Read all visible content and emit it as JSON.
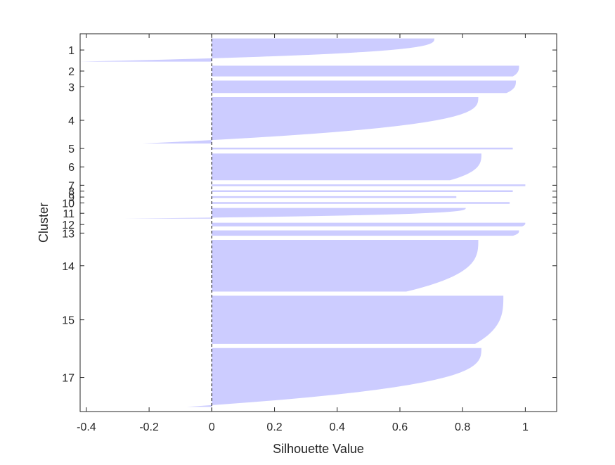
{
  "chart_data": {
    "type": "bar",
    "orientation": "horizontal",
    "xlabel": "Silhouette Value",
    "ylabel": "Cluster",
    "xlim": [
      -0.42,
      1.1
    ],
    "x_ticks": [
      "-0.4",
      "-0.2",
      "0",
      "0.2",
      "0.4",
      "0.6",
      "0.8",
      "1"
    ],
    "x_tick_values": [
      -0.4,
      -0.2,
      0,
      0.2,
      0.4,
      0.6,
      0.8,
      1
    ],
    "bar_color": "#ccccff",
    "zero_line_color": "#000000",
    "grid": false,
    "clusters": [
      {
        "label": "1",
        "count": 13,
        "max": 0.71,
        "min": -0.42
      },
      {
        "label": "2",
        "count": 6,
        "max": 0.98,
        "min": 0.96
      },
      {
        "label": "3",
        "count": 7,
        "max": 0.97,
        "min": 0.94
      },
      {
        "label": "4",
        "count": 26,
        "max": 0.85,
        "min": -0.22
      },
      {
        "label": "5",
        "count": 1,
        "max": 0.96,
        "min": 0.96
      },
      {
        "label": "6",
        "count": 15,
        "max": 0.86,
        "min": 0.76
      },
      {
        "label": "7",
        "count": 1,
        "max": 1.0,
        "min": 1.0
      },
      {
        "label": "8",
        "count": 1,
        "max": 0.96,
        "min": 0.96
      },
      {
        "label": "9",
        "count": 1,
        "max": 0.78,
        "min": 0.78
      },
      {
        "label": "10",
        "count": 1,
        "max": 0.95,
        "min": 0.95
      },
      {
        "label": "11",
        "count": 6,
        "max": 0.81,
        "min": -0.28
      },
      {
        "label": "12",
        "count": 2,
        "max": 1.0,
        "min": 0.99
      },
      {
        "label": "13",
        "count": 3,
        "max": 0.98,
        "min": 0.96
      },
      {
        "label": "14",
        "count": 29,
        "max": 0.85,
        "min": 0.62
      },
      {
        "label": "15",
        "count": 27,
        "max": 0.93,
        "min": 0.84
      },
      {
        "label": "17",
        "count": 33,
        "max": 0.86,
        "min": -0.08
      }
    ]
  }
}
